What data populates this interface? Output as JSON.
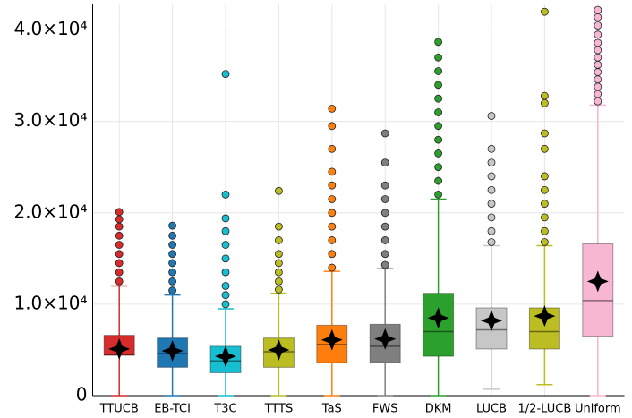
{
  "chart_data": {
    "type": "box",
    "categories": [
      "TTUCB",
      "EB-TCI",
      "T3C",
      "TTTS",
      "TaS",
      "FWS",
      "DKM",
      "LUCB",
      "1/2-LUCB",
      "Uniform"
    ],
    "colors": [
      "#d62c2c",
      "#1f77b4",
      "#17becf",
      "#bcbd22",
      "#ff7f0e",
      "#7f7f7f",
      "#2ca02c",
      "#c7c7c7",
      "#bcbd22",
      "#f7b6d2"
    ],
    "boxes": [
      {
        "low": 0,
        "q1": 4400,
        "median": 4500,
        "q3": 6600,
        "high": 12000,
        "mean": 5100,
        "outliers": [
          12500,
          13500,
          14500,
          15500,
          16500,
          17500,
          18500,
          19300,
          20100
        ]
      },
      {
        "low": 0,
        "q1": 3100,
        "median": 4600,
        "q3": 6300,
        "high": 11000,
        "mean": 4900,
        "outliers": [
          11500,
          12500,
          13500,
          14500,
          15500,
          16500,
          17500,
          18600
        ]
      },
      {
        "low": 0,
        "q1": 2500,
        "median": 3800,
        "q3": 5400,
        "high": 9500,
        "mean": 4300,
        "outliers": [
          10000,
          11000,
          12000,
          13500,
          15000,
          16500,
          18000,
          19400,
          22000,
          35200
        ]
      },
      {
        "low": 0,
        "q1": 3100,
        "median": 4800,
        "q3": 6300,
        "high": 11200,
        "mean": 5000,
        "outliers": [
          11600,
          12500,
          13500,
          14500,
          15500,
          17000,
          18500,
          22400
        ]
      },
      {
        "low": 0,
        "q1": 3600,
        "median": 5600,
        "q3": 7700,
        "high": 13600,
        "mean": 6100,
        "outliers": [
          14000,
          15500,
          17000,
          18500,
          20000,
          21500,
          23000,
          24500,
          27000,
          29500,
          31400
        ]
      },
      {
        "low": 0,
        "q1": 3600,
        "median": 5400,
        "q3": 7800,
        "high": 13900,
        "mean": 6200,
        "outliers": [
          14300,
          15500,
          17000,
          18500,
          20000,
          21500,
          23000,
          25500,
          28700
        ]
      },
      {
        "low": 0,
        "q1": 4300,
        "median": 7000,
        "q3": 11200,
        "high": 21500,
        "mean": 8500,
        "outliers": [
          22000,
          23500,
          25000,
          26500,
          28000,
          29500,
          31000,
          32500,
          34000,
          35500,
          37000,
          38700
        ]
      },
      {
        "low": 700,
        "q1": 5100,
        "median": 7200,
        "q3": 9600,
        "high": 16400,
        "mean": 8200,
        "outliers": [
          16800,
          18000,
          19500,
          21000,
          22500,
          24000,
          25500,
          27000,
          30600
        ]
      },
      {
        "low": 1200,
        "q1": 5100,
        "median": 7000,
        "q3": 9600,
        "high": 16400,
        "mean": 8700,
        "outliers": [
          16800,
          18000,
          19500,
          21000,
          22500,
          24000,
          27000,
          28700,
          32000,
          32800,
          42000
        ]
      },
      {
        "low": 0,
        "q1": 6500,
        "median": 10400,
        "q3": 16600,
        "high": 31800,
        "mean": 12500,
        "outliers": [
          32200,
          33000,
          33800,
          34600,
          35400,
          36200,
          37000,
          37800,
          38600,
          39500,
          40500,
          41400,
          42200
        ]
      }
    ],
    "ylim": [
      0,
      42800
    ],
    "yticks": [
      0,
      {
        "value": 10000,
        "label": "1.0×10⁴"
      },
      {
        "value": 20000,
        "label": "2.0×10⁴"
      },
      {
        "value": 30000,
        "label": "3.0×10⁴"
      },
      {
        "value": 40000,
        "label": "4.0×10⁴"
      }
    ],
    "grid": true
  }
}
